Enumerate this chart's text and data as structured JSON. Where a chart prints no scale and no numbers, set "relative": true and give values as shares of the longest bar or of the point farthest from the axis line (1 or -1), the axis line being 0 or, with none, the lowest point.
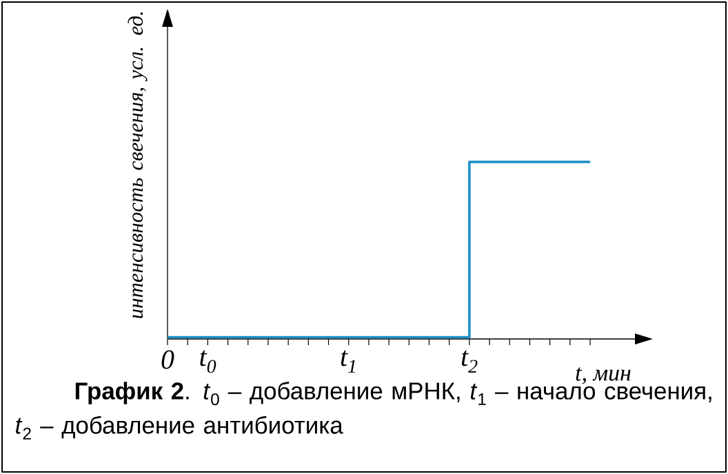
{
  "chart_data": {
    "type": "step",
    "relative": true,
    "title": "**График 2**.  *t*$_{0}$ – добавление мРНК, *t*$_{1}$ – начало свечения, *t*$_{2}$ – добавление антибиотика",
    "xlabel": "t, мин",
    "ylabel": "интенсивность свечения, усл. ед.",
    "categories": [
      "0",
      null,
      "t$_{0}$",
      null,
      null,
      null,
      null,
      null,
      null,
      "t$_{1}$",
      null,
      null,
      null,
      null,
      null,
      "t$_{2}$",
      null,
      null,
      null,
      null,
      null,
      null
    ],
    "color": "#1a8cc8",
    "values": [
      0.01,
      0.01,
      0.01,
      0.01,
      0.01,
      0.01,
      0.01,
      0.01,
      0.01,
      0.01,
      0.01,
      0.01,
      0.01,
      0.01,
      0.01,
      1,
      1,
      1,
      1,
      1,
      1,
      1
    ]
  }
}
